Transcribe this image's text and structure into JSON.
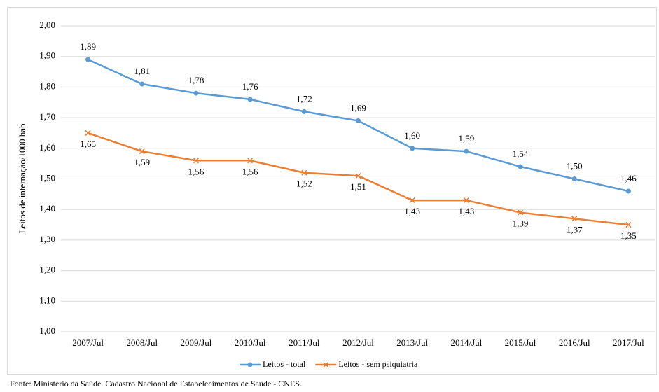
{
  "chart_data": {
    "type": "line",
    "ylabel": "Leitos de internação/1000 hab",
    "source": "Fonte: Ministério  da Saúde. Cadastro Nacional de Estabelecimentos de Saúde - CNES.",
    "categories": [
      "2007/Jul",
      "2008/Jul",
      "2009/Jul",
      "2010/Jul",
      "2011/Jul",
      "2012/Jul",
      "2013/Jul",
      "2014/Jul",
      "2015/Jul",
      "2016/Jul",
      "2017/Jul"
    ],
    "series": [
      {
        "name": "Leitos - total",
        "color": "#5b9bd5",
        "marker": "circle",
        "label_position": "above",
        "values": [
          1.89,
          1.81,
          1.78,
          1.76,
          1.72,
          1.69,
          1.6,
          1.59,
          1.54,
          1.5,
          1.46
        ],
        "value_labels": [
          "1,89",
          "1,81",
          "1,78",
          "1,76",
          "1,72",
          "1,69",
          "1,60",
          "1,59",
          "1,54",
          "1,50",
          "1,46"
        ]
      },
      {
        "name": "Leitos - sem psiquiatria",
        "color": "#ed7d31",
        "marker": "x",
        "label_position": "below",
        "values": [
          1.65,
          1.59,
          1.56,
          1.56,
          1.52,
          1.51,
          1.43,
          1.43,
          1.39,
          1.37,
          1.35
        ],
        "value_labels": [
          "1,65",
          "1,59",
          "1,56",
          "1,56",
          "1,52",
          "1,51",
          "1,43",
          "1,43",
          "1,39",
          "1,37",
          "1,35"
        ]
      }
    ],
    "ylim": [
      1.0,
      2.0
    ],
    "yticks": [
      {
        "value": 1.0,
        "label": "1,00"
      },
      {
        "value": 1.1,
        "label": "1,10"
      },
      {
        "value": 1.2,
        "label": "1,20"
      },
      {
        "value": 1.3,
        "label": "1,30"
      },
      {
        "value": 1.4,
        "label": "1,40"
      },
      {
        "value": 1.5,
        "label": "1,50"
      },
      {
        "value": 1.6,
        "label": "1,60"
      },
      {
        "value": 1.7,
        "label": "1,70"
      },
      {
        "value": 1.8,
        "label": "1,80"
      },
      {
        "value": 1.9,
        "label": "1,90"
      },
      {
        "value": 2.0,
        "label": "2,00"
      }
    ],
    "grid": true,
    "legend": "bottom"
  }
}
